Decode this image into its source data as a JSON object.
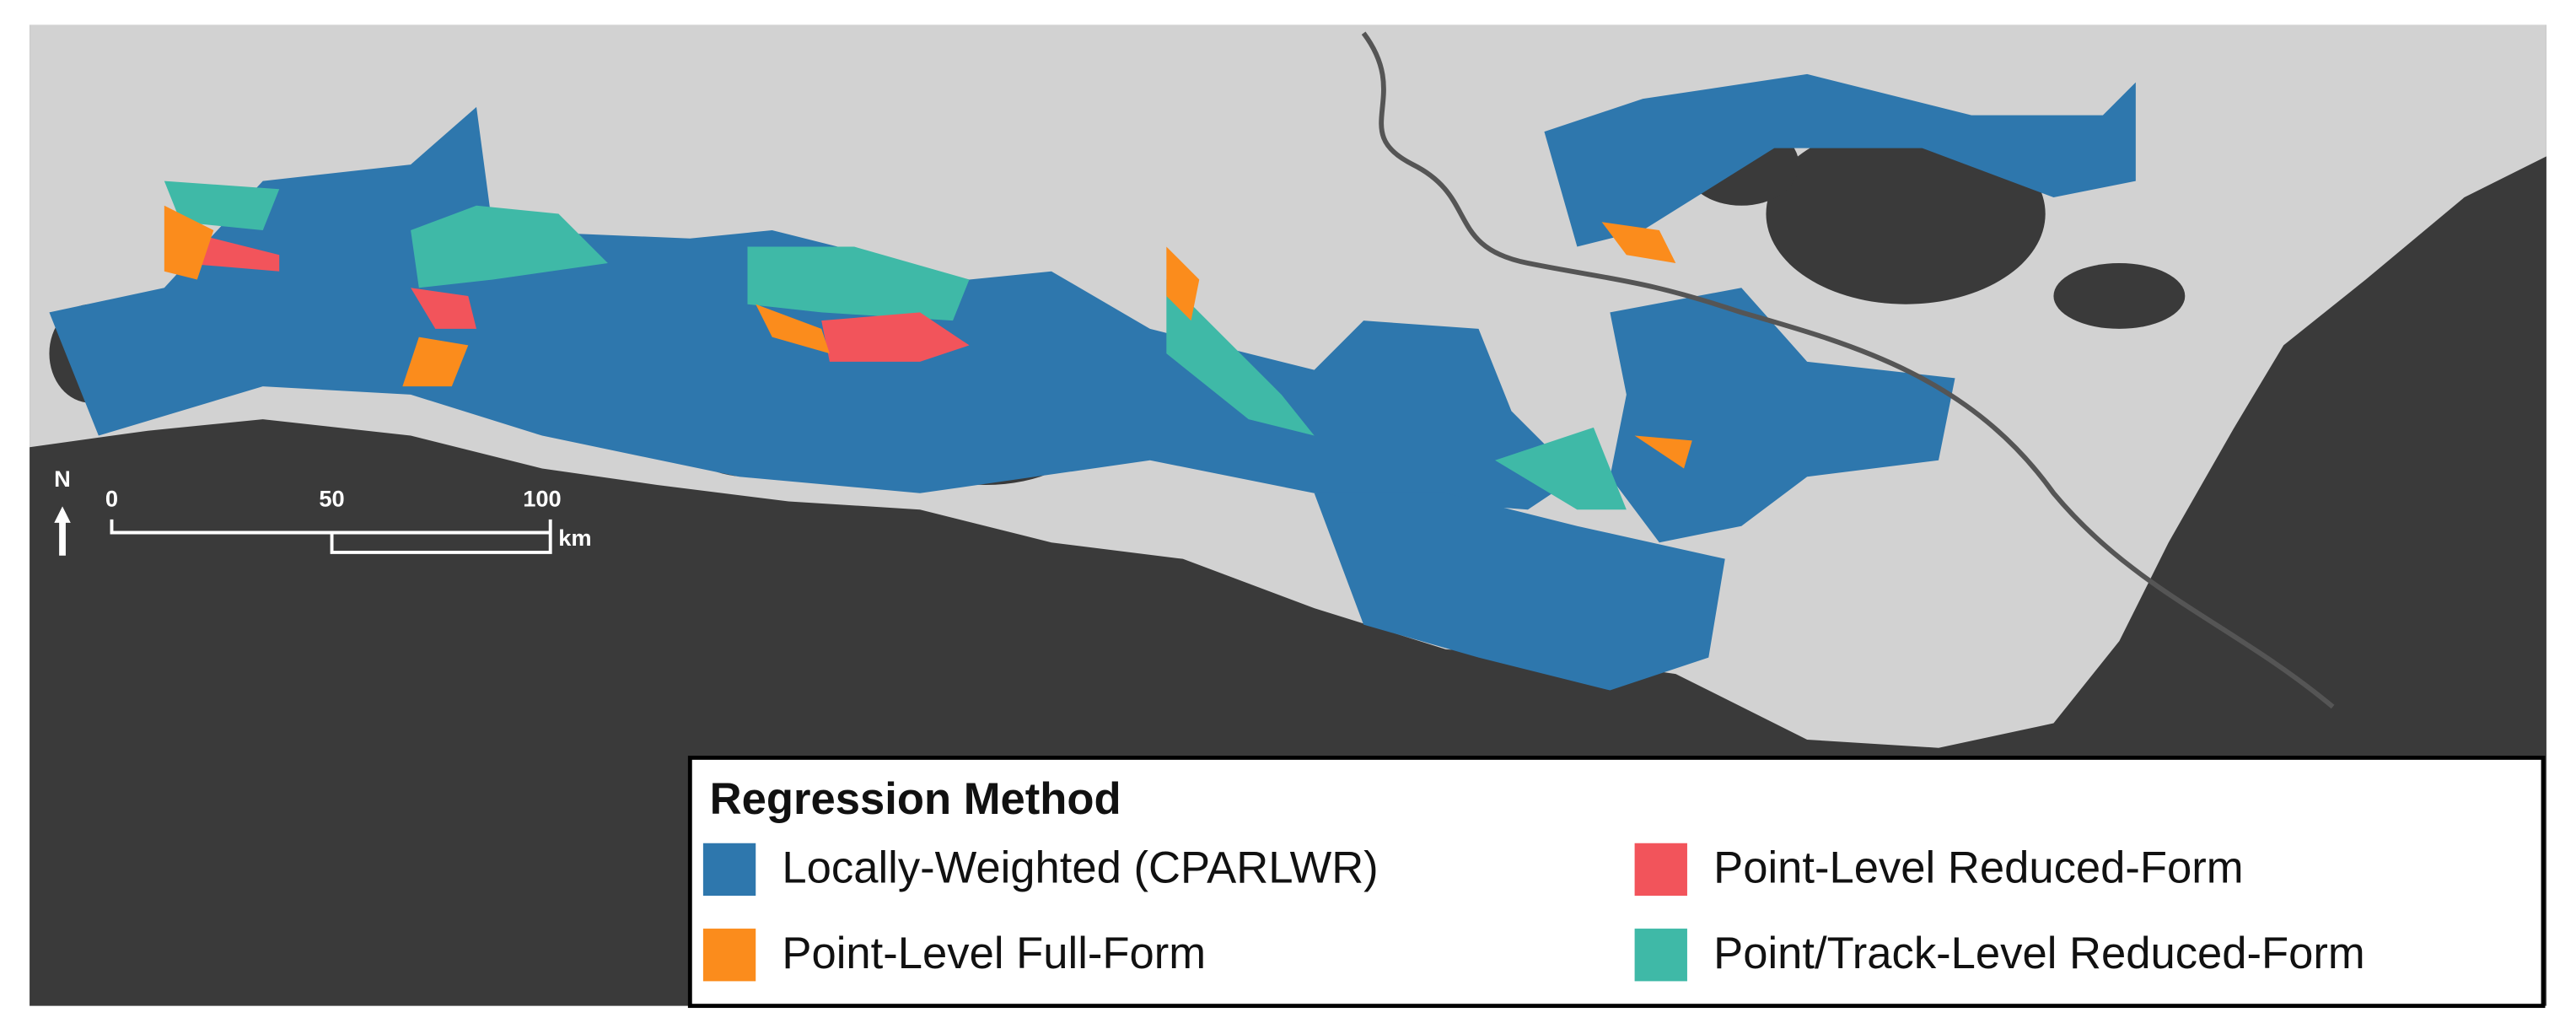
{
  "legend": {
    "title": "Regression Method",
    "items": [
      {
        "label": "Locally-Weighted (CPARLWR)",
        "color": "#2e77ad"
      },
      {
        "label": "Point-Level Reduced-Form",
        "color": "#f2545b"
      },
      {
        "label": "Point-Level Full-Form",
        "color": "#fb8c1c"
      },
      {
        "label": "Point/Track-Level Reduced-Form",
        "color": "#3fb9a7"
      }
    ]
  },
  "scale_bar": {
    "labels": [
      "0",
      "50",
      "100"
    ],
    "unit": "km"
  },
  "north_arrow": "N"
}
